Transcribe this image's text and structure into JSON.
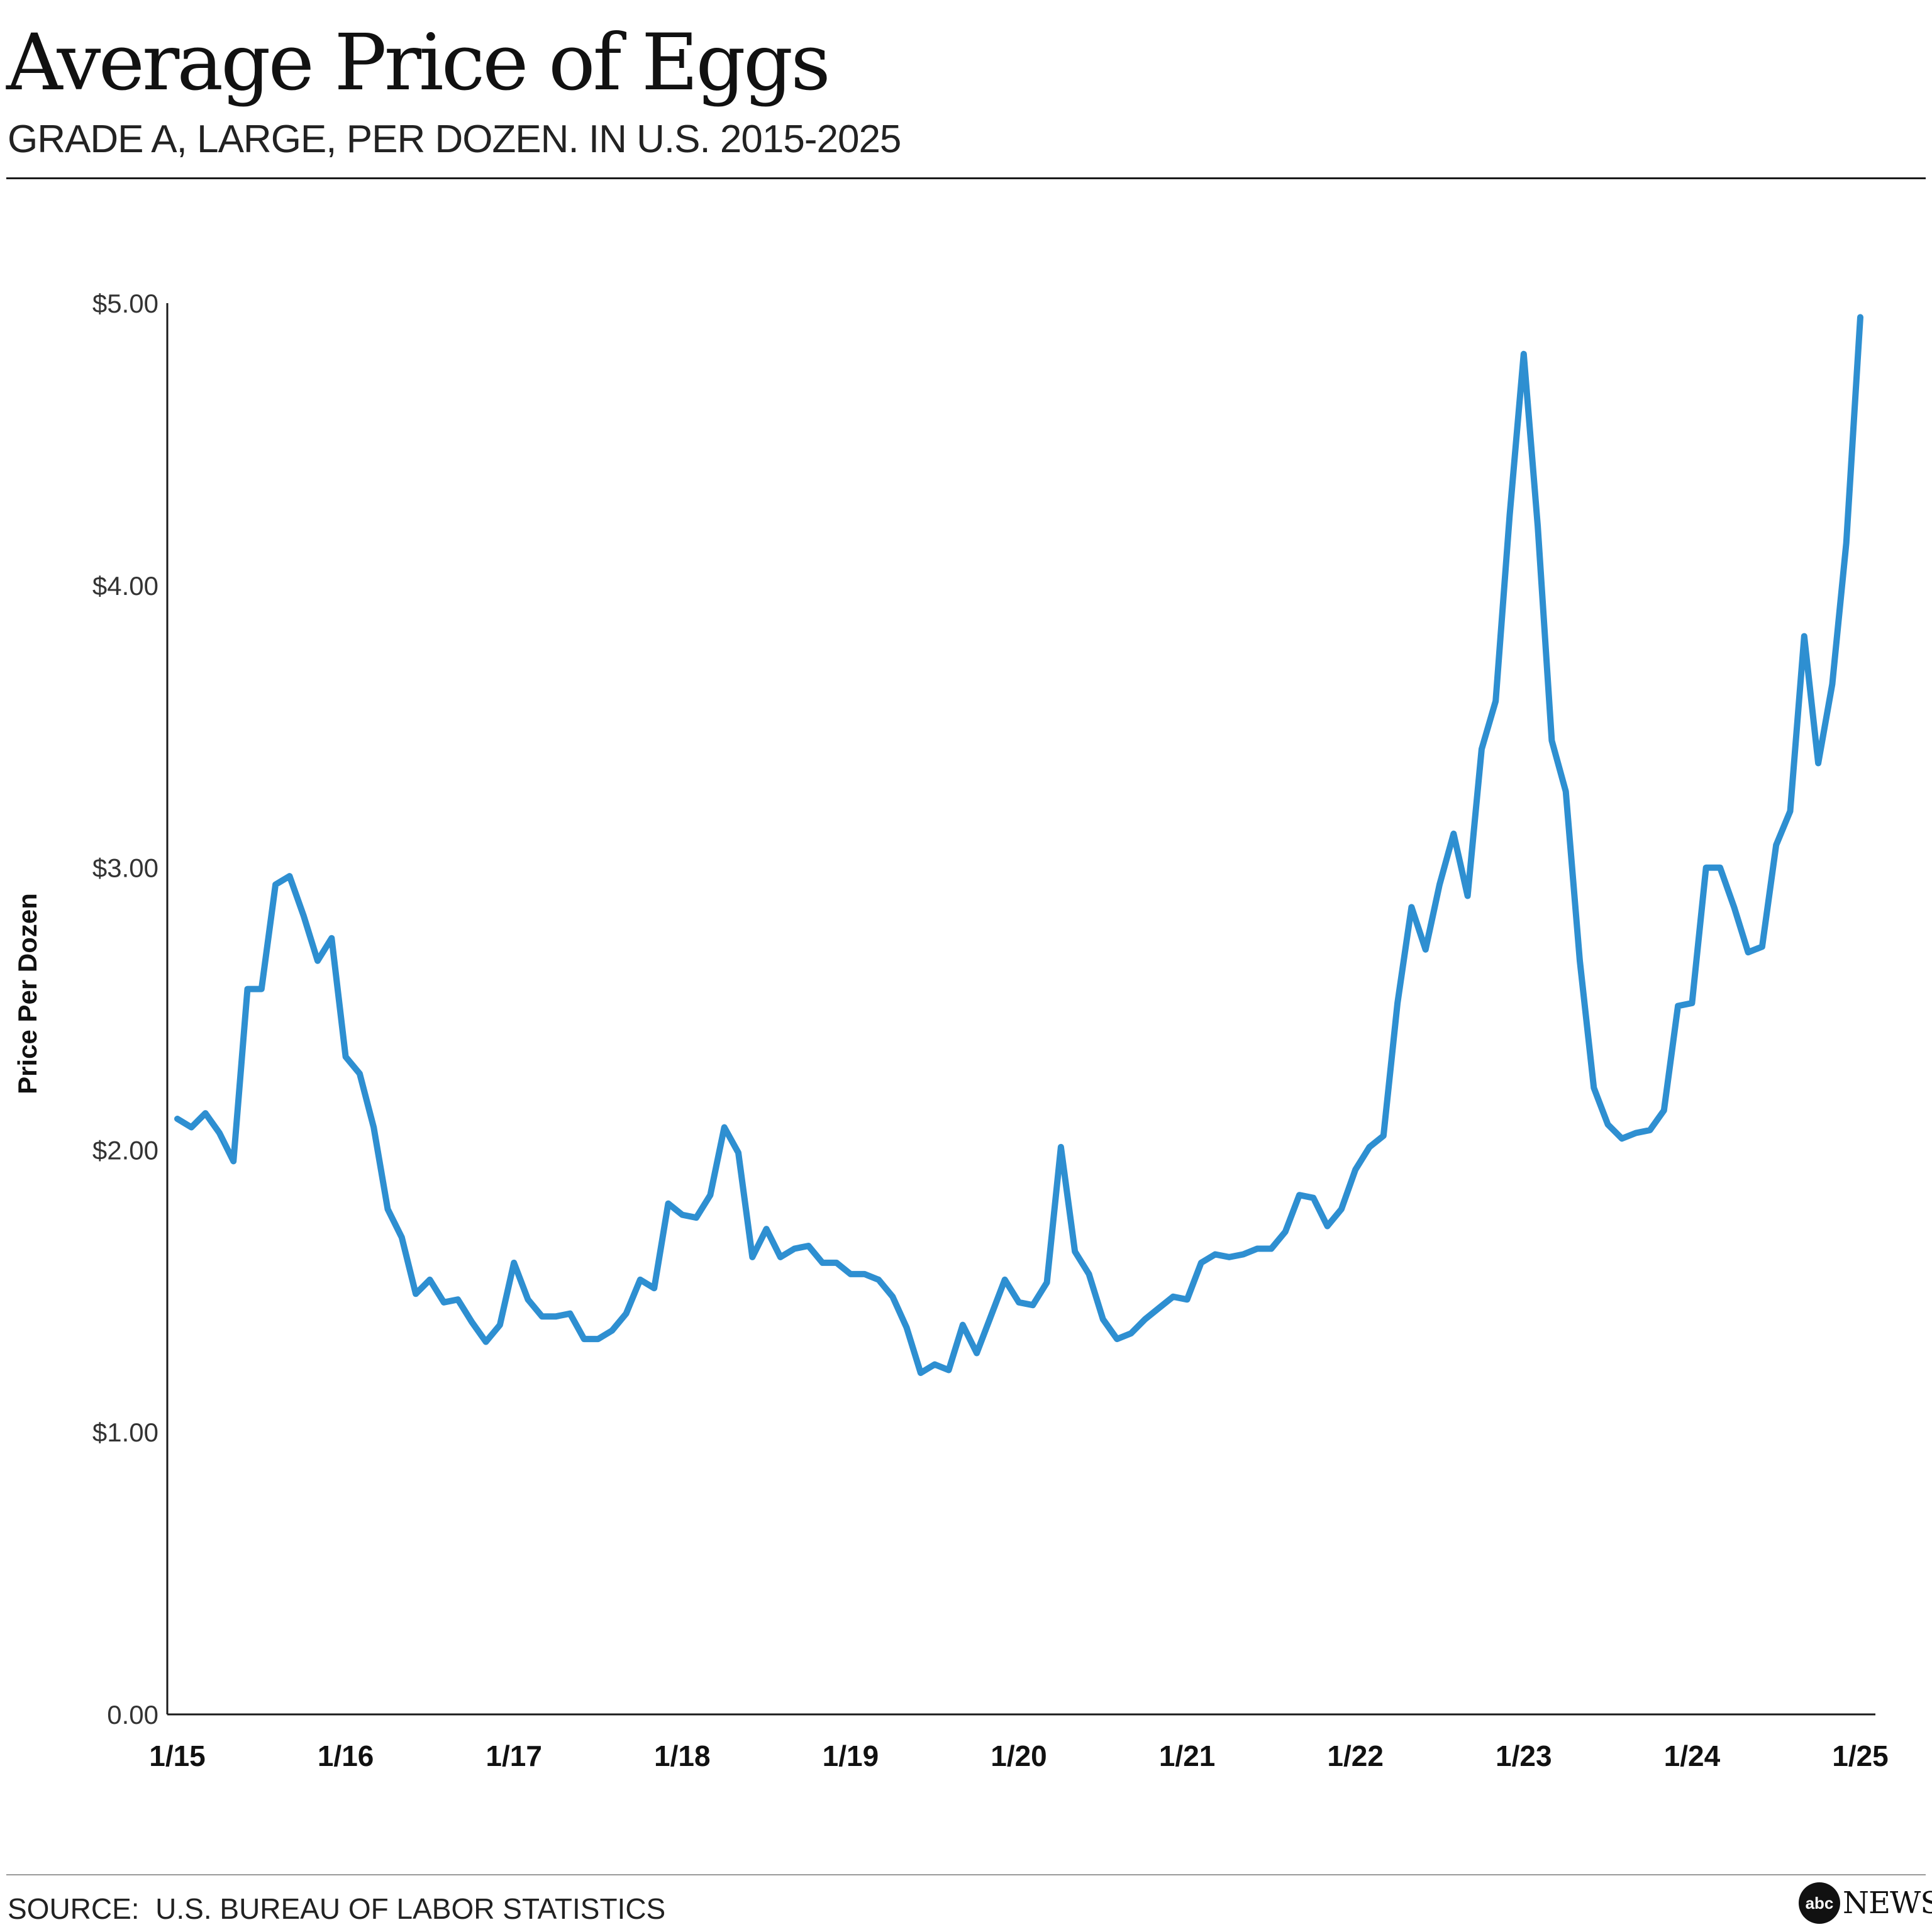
{
  "header": {
    "title": "Average Price of Eggs",
    "subtitle": "GRADE A, LARGE, PER DOZEN. IN U.S. 2015-2025"
  },
  "footer": {
    "source": "SOURCE:  U.S. BUREAU OF LABOR STATISTICS",
    "logo_mark": "abc",
    "logo_text": "NEWS"
  },
  "colors": {
    "line": "#2e8fd1",
    "axis": "#1a1a1a",
    "text": "#1a1a1a"
  },
  "chart_data": {
    "type": "line",
    "title": "Average Price of Eggs",
    "subtitle": "GRADE A, LARGE, PER DOZEN. IN U.S. 2015-2025",
    "xlabel": "",
    "ylabel": "Price Per Dozen",
    "ylim": [
      0,
      5
    ],
    "grid": false,
    "yticks": [
      0,
      1,
      2,
      3,
      4,
      5
    ],
    "ytick_labels": [
      "0.00",
      "$1.00",
      "$2.00",
      "$3.00",
      "$4.00",
      "$5.00"
    ],
    "xtick_labels": [
      "1/15",
      "1/16",
      "1/17",
      "1/18",
      "1/19",
      "1/20",
      "1/21",
      "1/22",
      "1/23",
      "1/24",
      "1/25"
    ],
    "x_start": "2015-01",
    "x_end": "2025-01",
    "series": [
      {
        "values": [
          2.11,
          2.08,
          2.13,
          2.06,
          1.96,
          2.57,
          2.57,
          2.94,
          2.97,
          2.83,
          2.67,
          2.75,
          2.33,
          2.27,
          2.08,
          1.79,
          1.69,
          1.49,
          1.54,
          1.46,
          1.47,
          1.39,
          1.32,
          1.38,
          1.6,
          1.47,
          1.41,
          1.41,
          1.42,
          1.33,
          1.33,
          1.36,
          1.42,
          1.54,
          1.51,
          1.81,
          1.77,
          1.76,
          1.84,
          2.08,
          1.99,
          1.62,
          1.72,
          1.62,
          1.65,
          1.66,
          1.6,
          1.6,
          1.56,
          1.56,
          1.54,
          1.48,
          1.37,
          1.21,
          1.24,
          1.22,
          1.38,
          1.28,
          1.41,
          1.54,
          1.46,
          1.45,
          1.53,
          2.01,
          1.64,
          1.56,
          1.4,
          1.33,
          1.35,
          1.4,
          1.44,
          1.48,
          1.47,
          1.6,
          1.63,
          1.62,
          1.63,
          1.65,
          1.65,
          1.71,
          1.84,
          1.83,
          1.73,
          1.79,
          1.93,
          2.01,
          2.05,
          2.52,
          2.86,
          2.71,
          2.94,
          3.12,
          2.9,
          3.42,
          3.59,
          4.25,
          4.82,
          4.21,
          3.45,
          3.27,
          2.67,
          2.22,
          2.09,
          2.04,
          2.06,
          2.07,
          2.14,
          2.51,
          2.52,
          3.0,
          3.0,
          2.86,
          2.7,
          2.72,
          3.08,
          3.2,
          3.82,
          3.37,
          3.65,
          4.15,
          4.95
        ]
      }
    ]
  }
}
